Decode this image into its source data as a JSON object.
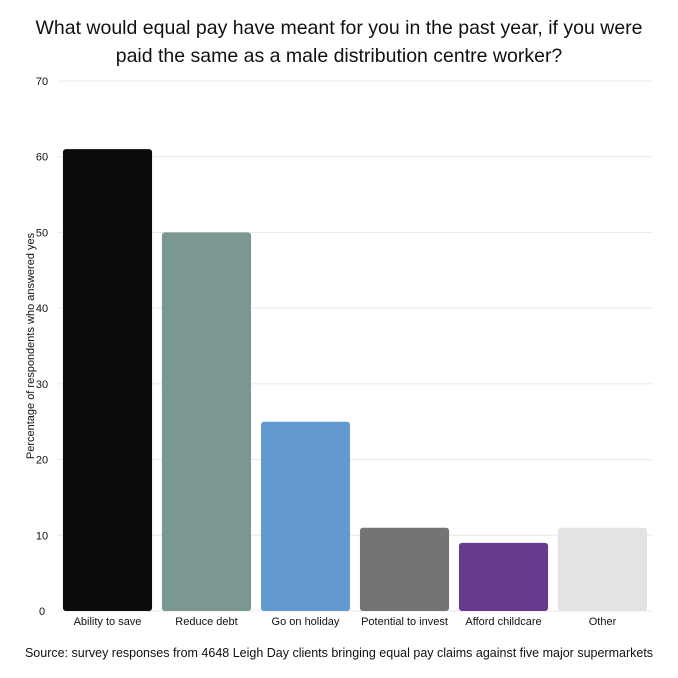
{
  "title_lines": [
    "What would equal pay have meant for you in the past year, if you were",
    "paid the same as a male distribution centre worker?"
  ],
  "source": "Source: survey responses from 4648 Leigh Day clients bringing equal pay claims against five major supermarkets",
  "chart_data": {
    "type": "bar",
    "title": "What would equal pay have meant for you in the past year, if you were paid the same as a male distribution centre worker?",
    "xlabel": "",
    "ylabel": "Percentage of respondents who answered yes",
    "ylim": [
      0,
      70
    ],
    "yticks": [
      0,
      10,
      20,
      30,
      40,
      50,
      60,
      70
    ],
    "grid": true,
    "legend": "none",
    "categories": [
      "Ability to save",
      "Reduce debt",
      "Go on holiday",
      "Potential to invest",
      "Afford childcare",
      "Other"
    ],
    "values": [
      61,
      50,
      25,
      11,
      9,
      11
    ],
    "colors": [
      "#0b0b0b",
      "#7a9791",
      "#6399d1",
      "#747474",
      "#663b8b",
      "#e3e3e3"
    ]
  }
}
